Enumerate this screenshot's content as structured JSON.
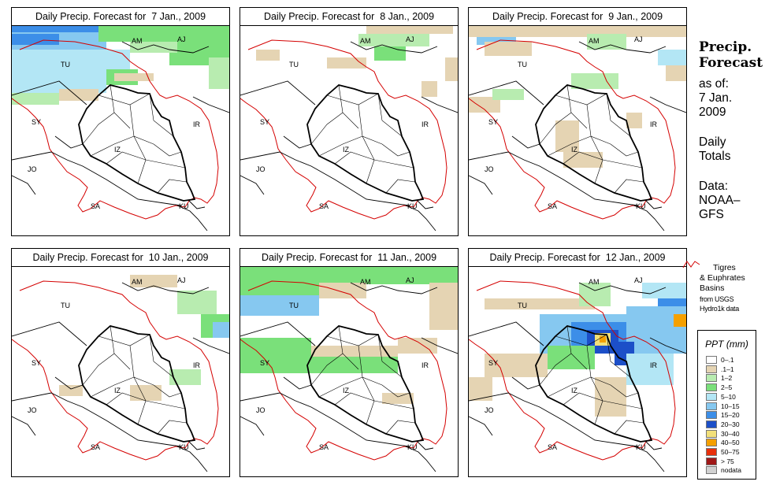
{
  "panels": [
    {
      "title": "Daily Precip. Forecast for  7 Jan., 2009",
      "date": "7 Jan., 2009"
    },
    {
      "title": "Daily Precip. Forecast for  8 Jan., 2009",
      "date": "8 Jan., 2009"
    },
    {
      "title": "Daily Precip. Forecast for  9 Jan., 2009",
      "date": "9 Jan., 2009"
    },
    {
      "title": "Daily Precip. Forecast for  10 Jan., 2009",
      "date": "10 Jan., 2009"
    },
    {
      "title": "Daily Precip. Forecast for  11 Jan., 2009",
      "date": "11 Jan., 2009"
    },
    {
      "title": "Daily Precip. Forecast for  12 Jan., 2009",
      "date": "12 Jan., 2009"
    }
  ],
  "country_labels": [
    "AM",
    "AJ",
    "TU",
    "SY",
    "IR",
    "IZ",
    "JO",
    "SA",
    "KU"
  ],
  "sidebar": {
    "title_line1": "Precip.",
    "title_line2": "Forecast",
    "asof_line1": "as of:",
    "asof_line2": "7 Jan.",
    "asof_line3": "2009",
    "totals_line1": "Daily",
    "totals_line2": "Totals",
    "data_line1": "Data:",
    "data_line2": "NOAA–",
    "data_line3": "GFS"
  },
  "basin_legend": {
    "line1": "Tigres",
    "line2": "& Euphrates",
    "line3": "Basins",
    "line4": "from USGS",
    "line5": "Hydro1k data",
    "line_color": "#d40000"
  },
  "legend": {
    "title": "PPT (mm)",
    "classes": [
      {
        "label": "0–.1",
        "color": "#ffffff"
      },
      {
        "label": ".1–1",
        "color": "#e5d4b3"
      },
      {
        "label": "1–2",
        "color": "#b8ecb0"
      },
      {
        "label": "2–5",
        "color": "#7ae07a"
      },
      {
        "label": "5–10",
        "color": "#b3e6f5"
      },
      {
        "label": "10–15",
        "color": "#86c8f0"
      },
      {
        "label": "15–20",
        "color": "#3c8ee8"
      },
      {
        "label": "20–30",
        "color": "#1c4fc8"
      },
      {
        "label": "30–40",
        "color": "#f2e07a"
      },
      {
        "label": "40–50",
        "color": "#f5a000"
      },
      {
        "label": "50–75",
        "color": "#e8300c"
      },
      {
        "label": "> 75",
        "color": "#a01818"
      },
      {
        "label": "nodata",
        "color": "#d2d2d2"
      }
    ]
  },
  "colors": {
    "basin_outline": "#d40000",
    "country_border": "#000000"
  }
}
